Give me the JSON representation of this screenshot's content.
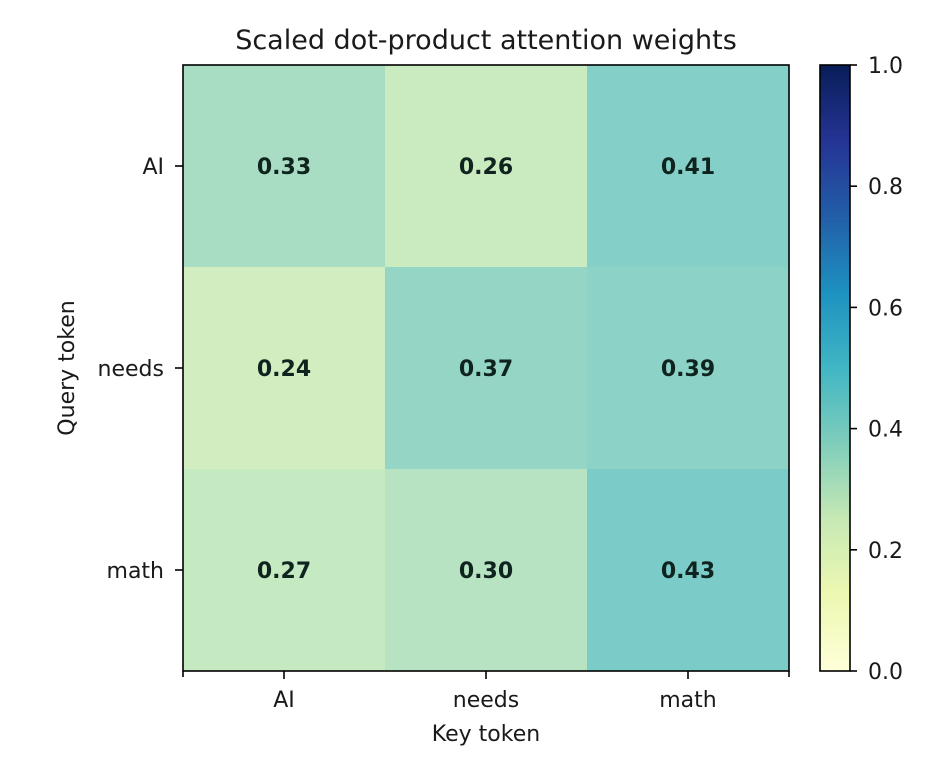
{
  "chart_data": {
    "type": "heatmap",
    "title": "Scaled dot-product attention weights",
    "xlabel": "Key token",
    "ylabel": "Query token",
    "x_categories": [
      "AI",
      "needs",
      "math"
    ],
    "y_categories": [
      "AI",
      "needs",
      "math"
    ],
    "values": [
      [
        0.33,
        0.26,
        0.41
      ],
      [
        0.24,
        0.37,
        0.39
      ],
      [
        0.27,
        0.3,
        0.43
      ]
    ],
    "cell_labels": [
      [
        "0.33",
        "0.26",
        "0.41"
      ],
      [
        "0.24",
        "0.37",
        "0.39"
      ],
      [
        "0.27",
        "0.30",
        "0.43"
      ]
    ],
    "colormap": "YlGnBu",
    "colorbar": {
      "vmin": 0.0,
      "vmax": 1.0,
      "ticks": [
        0.0,
        0.2,
        0.4,
        0.6,
        0.8,
        1.0
      ],
      "tick_labels": [
        "0.0",
        "0.2",
        "0.4",
        "0.6",
        "0.8",
        "1.0"
      ]
    },
    "grid": false
  }
}
